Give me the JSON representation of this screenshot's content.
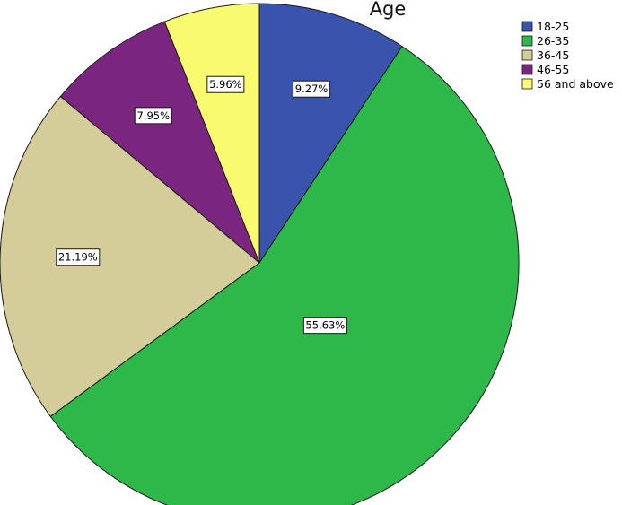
{
  "chart_data": {
    "type": "pie",
    "title": "Age",
    "start": "12 o'clock",
    "direction": "clockwise",
    "slices": [
      {
        "label": "18-25",
        "value": 9.27,
        "display": "9.27%",
        "color": "#3a53ad"
      },
      {
        "label": "26-35",
        "value": 55.63,
        "display": "55.63%",
        "color": "#2eb84a"
      },
      {
        "label": "36-45",
        "value": 21.19,
        "display": "21.19%",
        "color": "#d4cd9a"
      },
      {
        "label": "46-55",
        "value": 7.95,
        "display": "7.95%",
        "color": "#7a2580"
      },
      {
        "label": "56 and above",
        "value": 5.96,
        "display": "5.96%",
        "color": "#fafa70"
      }
    ],
    "legend_position": "top-right"
  }
}
